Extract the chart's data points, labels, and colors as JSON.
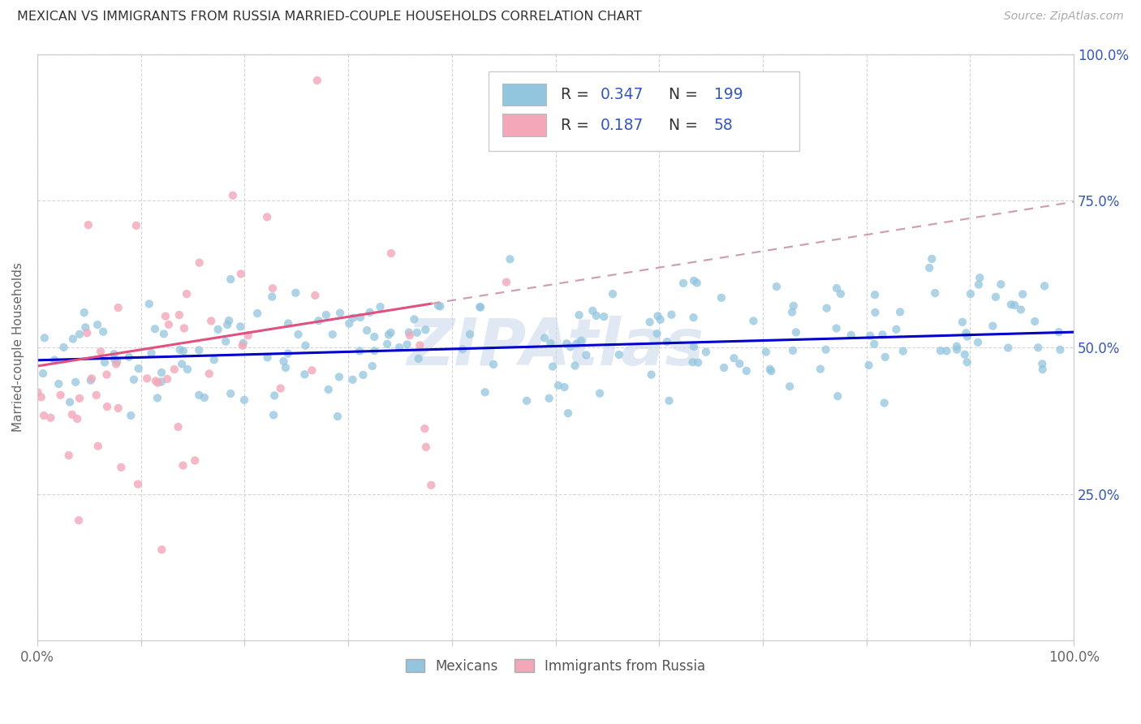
{
  "title": "MEXICAN VS IMMIGRANTS FROM RUSSIA MARRIED-COUPLE HOUSEHOLDS CORRELATION CHART",
  "source": "Source: ZipAtlas.com",
  "ylabel": "Married-couple Households",
  "blue_R": "0.347",
  "blue_N": "199",
  "pink_R": "0.187",
  "pink_N": "58",
  "blue_color": "#92c5de",
  "pink_color": "#f4a7b9",
  "blue_line_color": "#0000cc",
  "pink_line_solid_color": "#e05080",
  "pink_line_dash_color": "#d0a0b0",
  "watermark": "ZIPAtlas",
  "watermark_color": "#c8d8ea",
  "background_color": "#ffffff",
  "grid_color": "#cccccc",
  "title_color": "#333333",
  "right_axis_label_color": "#3355cc",
  "legend_labels": [
    "Mexicans",
    "Immigrants from Russia"
  ],
  "blue_intercept": 0.478,
  "blue_slope": 0.048,
  "pink_intercept": 0.468,
  "pink_slope": 0.28,
  "pink_line_solid_end": 0.38,
  "ylim_low": 0.0,
  "ylim_high": 1.0,
  "xlim_low": 0.0,
  "xlim_high": 1.0,
  "ytick_vals": [
    0.0,
    0.25,
    0.5,
    0.75,
    1.0
  ],
  "ytick_labels_right": [
    "",
    "25.0%",
    "50.0%",
    "75.0%",
    "100.0%"
  ],
  "xtick_vals": [
    0.0,
    0.1,
    0.2,
    0.3,
    0.4,
    0.5,
    0.6,
    0.7,
    0.8,
    0.9,
    1.0
  ]
}
